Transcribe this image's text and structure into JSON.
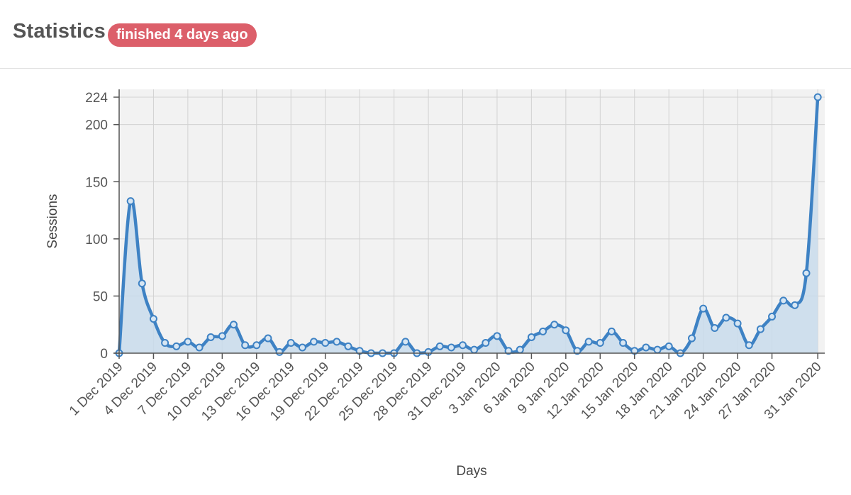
{
  "header": {
    "title": "Statistics",
    "status_badge": "finished 4 days ago"
  },
  "colors": {
    "line": "#3e82c4",
    "area": "#c9dcec",
    "plot_background": "#f2f2f2",
    "badge": "#dc5f6a"
  },
  "chart_data": {
    "type": "area",
    "title": "",
    "xlabel": "Days",
    "ylabel": "Sessions",
    "ylim": [
      0,
      224
    ],
    "yticks": [
      0,
      50,
      100,
      150,
      200,
      224
    ],
    "x_start": "1 Dec 2019",
    "x_end": "31 Jan 2020",
    "grid": true,
    "x_tick_labels": [
      "1 Dec 2019",
      "4 Dec 2019",
      "7 Dec 2019",
      "10 Dec 2019",
      "13 Dec 2019",
      "16 Dec 2019",
      "19 Dec 2019",
      "22 Dec 2019",
      "25 Dec 2019",
      "28 Dec 2019",
      "31 Dec 2019",
      "3 Jan 2020",
      "6 Jan 2020",
      "9 Jan 2020",
      "12 Jan 2020",
      "15 Jan 2020",
      "18 Jan 2020",
      "21 Jan 2020",
      "24 Jan 2020",
      "27 Jan 2020",
      "31 Jan 2020"
    ],
    "series": [
      {
        "name": "",
        "values": [
          0,
          133,
          61,
          30,
          9,
          6,
          10,
          5,
          14,
          15,
          25,
          7,
          7,
          13,
          1,
          9,
          5,
          10,
          9,
          10,
          6,
          2,
          0,
          0,
          0,
          10,
          0,
          1,
          6,
          5,
          7,
          3,
          9,
          15,
          2,
          3,
          14,
          19,
          25,
          20,
          2,
          10,
          9,
          19,
          9,
          2,
          5,
          3,
          6,
          0,
          13,
          39,
          22,
          31,
          26,
          7,
          21,
          32,
          46,
          42,
          70,
          224
        ]
      }
    ]
  }
}
